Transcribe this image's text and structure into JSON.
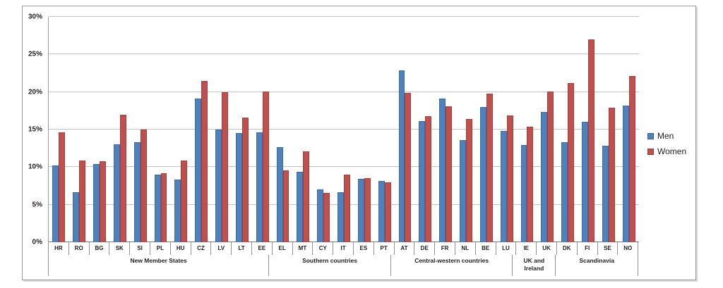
{
  "chart_data": {
    "type": "bar",
    "title": "",
    "xlabel": "",
    "ylabel": "",
    "ylim": [
      0,
      30
    ],
    "yticks": [
      0,
      5,
      10,
      15,
      20,
      25,
      30
    ],
    "ytick_suffix": "%",
    "grid": true,
    "legend_position": "right",
    "categories": [
      "HR",
      "RO",
      "BG",
      "SK",
      "SI",
      "PL",
      "HU",
      "CZ",
      "LV",
      "LT",
      "EE",
      "EL",
      "MT",
      "CY",
      "IT",
      "ES",
      "PT",
      "AT",
      "DE",
      "FR",
      "NL",
      "BE",
      "LU",
      "IE",
      "UK",
      "DK",
      "FI",
      "SE",
      "NO"
    ],
    "series": [
      {
        "name": "Men",
        "color": "#4F81BD",
        "values": [
          10.2,
          6.7,
          10.4,
          13.0,
          13.3,
          9.0,
          8.3,
          19.1,
          15.0,
          14.5,
          14.6,
          12.7,
          9.4,
          7.0,
          6.7,
          8.4,
          8.2,
          22.9,
          16.1,
          19.1,
          13.6,
          18.0,
          14.8,
          12.9,
          17.3,
          13.3,
          16.0,
          12.8,
          18.2
        ]
      },
      {
        "name": "Women",
        "color": "#C0504D",
        "values": [
          14.6,
          10.9,
          10.8,
          17.0,
          15.0,
          9.2,
          10.9,
          21.5,
          20.0,
          16.6,
          20.1,
          9.6,
          12.1,
          6.6,
          9.0,
          8.5,
          8.0,
          19.9,
          16.8,
          18.1,
          16.4,
          19.8,
          16.9,
          15.4,
          20.1,
          21.2,
          27.0,
          17.9,
          22.1
        ]
      }
    ],
    "category_groups": [
      {
        "label": "New Member States",
        "count": 11
      },
      {
        "label": "Southern countries",
        "count": 6
      },
      {
        "label": "Central-western countries",
        "count": 6
      },
      {
        "label": "UK and Ireland",
        "count": 2
      },
      {
        "label": "Scandinavia",
        "count": 4
      }
    ]
  }
}
